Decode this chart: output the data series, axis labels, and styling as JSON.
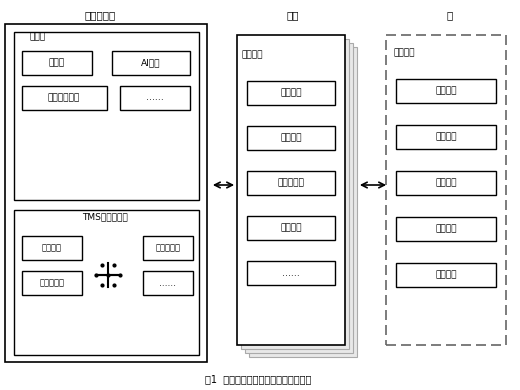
{
  "title_cloud": "云数据中心",
  "title_edge": "边缘",
  "title_end": "端",
  "label_edge_cloud": "边缘云",
  "label_tms": "TMS边缘云平台",
  "label_edge_node": "边缘节点",
  "label_device_res": "设备资源",
  "cloud_boxes": [
    "云存储",
    "AI训练",
    "归并结果分析",
    "……"
  ],
  "tms_boxes_left": [
    "节点调度",
    "故障单派发"
  ],
  "tms_boxes_right": [
    "知识库更新",
    "……"
  ],
  "edge_boxes": [
    "设备连接",
    "告警采集",
    "持久化存储",
    "告警归并",
    "……"
  ],
  "end_boxes": [
    "设备连接",
    "设备连接",
    "设备连接",
    "设备连接",
    "设备连接"
  ],
  "caption": "图1  电力通信网自动派单边缘计算系统",
  "bg_color": "#ffffff"
}
